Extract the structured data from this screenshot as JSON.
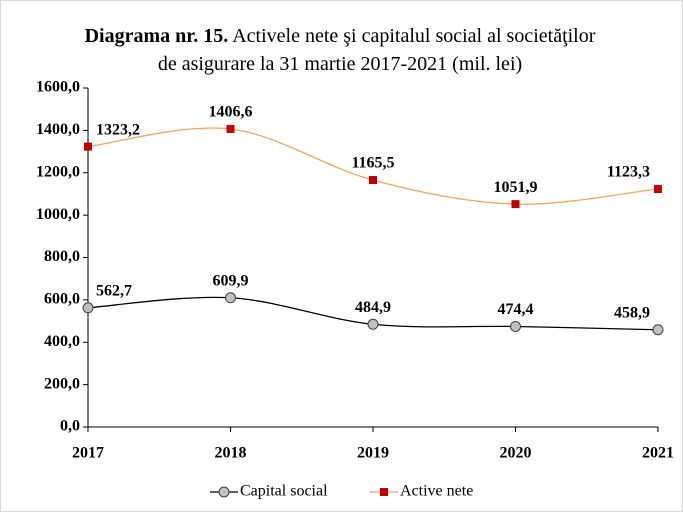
{
  "chart_data": {
    "type": "line",
    "title_prefix": "Diagrama nr. 15.",
    "title": "Activele nete şi capitalul social al societăţilor de asigurare la 31 martie 2017-2021 (mil. lei)",
    "categories": [
      "2017",
      "2018",
      "2019",
      "2020",
      "2021"
    ],
    "series": [
      {
        "name": "Capital social",
        "color": "#000000",
        "marker_color": "#bfbfbf",
        "marker": "circle",
        "values": [
          562.7,
          609.9,
          484.9,
          474.4,
          458.9
        ],
        "value_labels": [
          "562,7",
          "609,9",
          "484,9",
          "474,4",
          "458,9"
        ]
      },
      {
        "name": "Active nete",
        "color": "#f4a460",
        "marker_color": "#c00000",
        "marker": "square",
        "values": [
          1323.2,
          1406.6,
          1165.5,
          1051.9,
          1123.3
        ],
        "value_labels": [
          "1323,2",
          "1406,6",
          "1165,5",
          "1051,9",
          "1123,3"
        ]
      }
    ],
    "ylim": [
      0,
      1600
    ],
    "yticks": [
      {
        "value": 0,
        "label": "0,0"
      },
      {
        "value": 200,
        "label": "200,0"
      },
      {
        "value": 400,
        "label": "400,0"
      },
      {
        "value": 600,
        "label": "600,0"
      },
      {
        "value": 800,
        "label": "800,0"
      },
      {
        "value": 1000,
        "label": "1000,0"
      },
      {
        "value": 1200,
        "label": "1200,0"
      },
      {
        "value": 1400,
        "label": "1400,0"
      },
      {
        "value": 1600,
        "label": "1600,0"
      }
    ],
    "legend": "bottom"
  }
}
